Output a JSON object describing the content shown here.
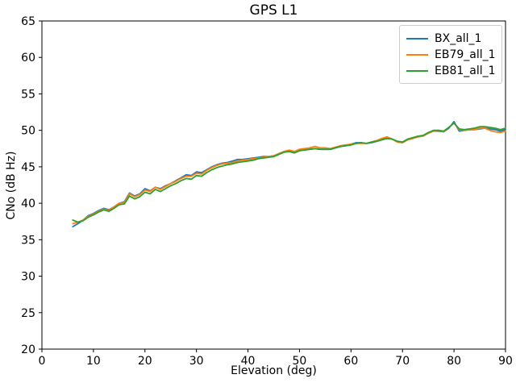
{
  "chart_data": {
    "type": "line",
    "title": "GPS L1",
    "xlabel": "Elevation (deg)",
    "ylabel": "CNo (dB Hz)",
    "xlim": [
      0,
      90
    ],
    "ylim": [
      20,
      65
    ],
    "xticks": [
      0,
      10,
      20,
      30,
      40,
      50,
      60,
      70,
      80,
      90
    ],
    "yticks": [
      20,
      25,
      30,
      35,
      40,
      45,
      50,
      55,
      60,
      65
    ],
    "grid": false,
    "legend_position": "upper right",
    "x": [
      6,
      7,
      8,
      9,
      10,
      11,
      12,
      13,
      14,
      15,
      16,
      17,
      18,
      19,
      20,
      21,
      22,
      23,
      24,
      25,
      26,
      27,
      28,
      29,
      30,
      31,
      32,
      33,
      34,
      35,
      36,
      37,
      38,
      39,
      40,
      41,
      42,
      43,
      44,
      45,
      46,
      47,
      48,
      49,
      50,
      51,
      52,
      53,
      54,
      55,
      56,
      57,
      58,
      59,
      60,
      61,
      62,
      63,
      64,
      65,
      66,
      67,
      68,
      69,
      70,
      71,
      72,
      73,
      74,
      75,
      76,
      77,
      78,
      79,
      80,
      81,
      82,
      83,
      84,
      85,
      86,
      87,
      88,
      89,
      90
    ],
    "series": [
      {
        "name": "BX_all_1",
        "color": "#1f77b4",
        "values": [
          36.8,
          37.2,
          37.7,
          38.3,
          38.6,
          39.0,
          39.3,
          39.1,
          39.5,
          40.0,
          40.2,
          41.4,
          41.0,
          41.3,
          42.0,
          41.7,
          42.2,
          42.0,
          42.4,
          42.7,
          43.1,
          43.5,
          43.9,
          43.8,
          44.3,
          44.2,
          44.6,
          45.0,
          45.3,
          45.5,
          45.6,
          45.8,
          46.0,
          46.0,
          46.1,
          46.2,
          46.3,
          46.4,
          46.4,
          46.5,
          46.8,
          47.1,
          47.2,
          47.0,
          47.3,
          47.3,
          47.4,
          47.5,
          47.4,
          47.4,
          47.4,
          47.6,
          47.8,
          47.9,
          48.1,
          48.3,
          48.3,
          48.2,
          48.3,
          48.5,
          48.7,
          48.9,
          48.8,
          48.4,
          48.3,
          48.7,
          48.9,
          49.1,
          49.3,
          49.6,
          49.9,
          49.9,
          49.8,
          50.3,
          51.2,
          49.9,
          50.0,
          50.1,
          50.1,
          50.2,
          50.3,
          50.2,
          50.1,
          49.9,
          50.1
        ]
      },
      {
        "name": "EB79_all_1",
        "color": "#ff7f0e",
        "values": [
          37.2,
          37.4,
          37.7,
          38.2,
          38.5,
          38.9,
          39.2,
          39.0,
          39.5,
          40.0,
          40.1,
          41.3,
          40.9,
          41.2,
          41.8,
          41.6,
          42.2,
          41.9,
          42.3,
          42.7,
          43.0,
          43.4,
          43.7,
          43.7,
          44.1,
          44.0,
          44.5,
          44.9,
          45.2,
          45.4,
          45.5,
          45.6,
          45.8,
          45.9,
          46.0,
          46.1,
          46.2,
          46.3,
          46.4,
          46.5,
          46.8,
          47.1,
          47.3,
          47.1,
          47.4,
          47.5,
          47.6,
          47.8,
          47.6,
          47.6,
          47.5,
          47.7,
          47.9,
          48.0,
          48.1,
          48.2,
          48.2,
          48.2,
          48.4,
          48.6,
          48.9,
          49.1,
          48.8,
          48.4,
          48.3,
          48.7,
          48.9,
          49.1,
          49.2,
          49.6,
          49.9,
          50.0,
          49.8,
          50.4,
          51.0,
          50.1,
          50.0,
          50.1,
          50.1,
          50.3,
          50.3,
          50.0,
          49.8,
          49.7,
          49.9
        ]
      },
      {
        "name": "EB81_all_1",
        "color": "#2ca02c",
        "values": [
          37.7,
          37.4,
          37.6,
          38.1,
          38.4,
          38.8,
          39.1,
          38.9,
          39.3,
          39.8,
          39.9,
          41.0,
          40.6,
          40.9,
          41.5,
          41.3,
          41.9,
          41.6,
          42.0,
          42.4,
          42.7,
          43.1,
          43.4,
          43.3,
          43.8,
          43.7,
          44.2,
          44.6,
          44.9,
          45.1,
          45.3,
          45.4,
          45.6,
          45.7,
          45.8,
          45.9,
          46.1,
          46.2,
          46.3,
          46.4,
          46.7,
          47.0,
          47.1,
          46.9,
          47.2,
          47.3,
          47.4,
          47.5,
          47.4,
          47.4,
          47.4,
          47.6,
          47.8,
          47.9,
          48.0,
          48.2,
          48.3,
          48.2,
          48.4,
          48.5,
          48.7,
          48.9,
          48.8,
          48.5,
          48.4,
          48.8,
          49.0,
          49.2,
          49.3,
          49.7,
          50.0,
          50.0,
          49.9,
          50.4,
          51.0,
          50.2,
          50.1,
          50.2,
          50.3,
          50.5,
          50.5,
          50.4,
          50.3,
          50.1,
          50.3
        ]
      }
    ]
  }
}
